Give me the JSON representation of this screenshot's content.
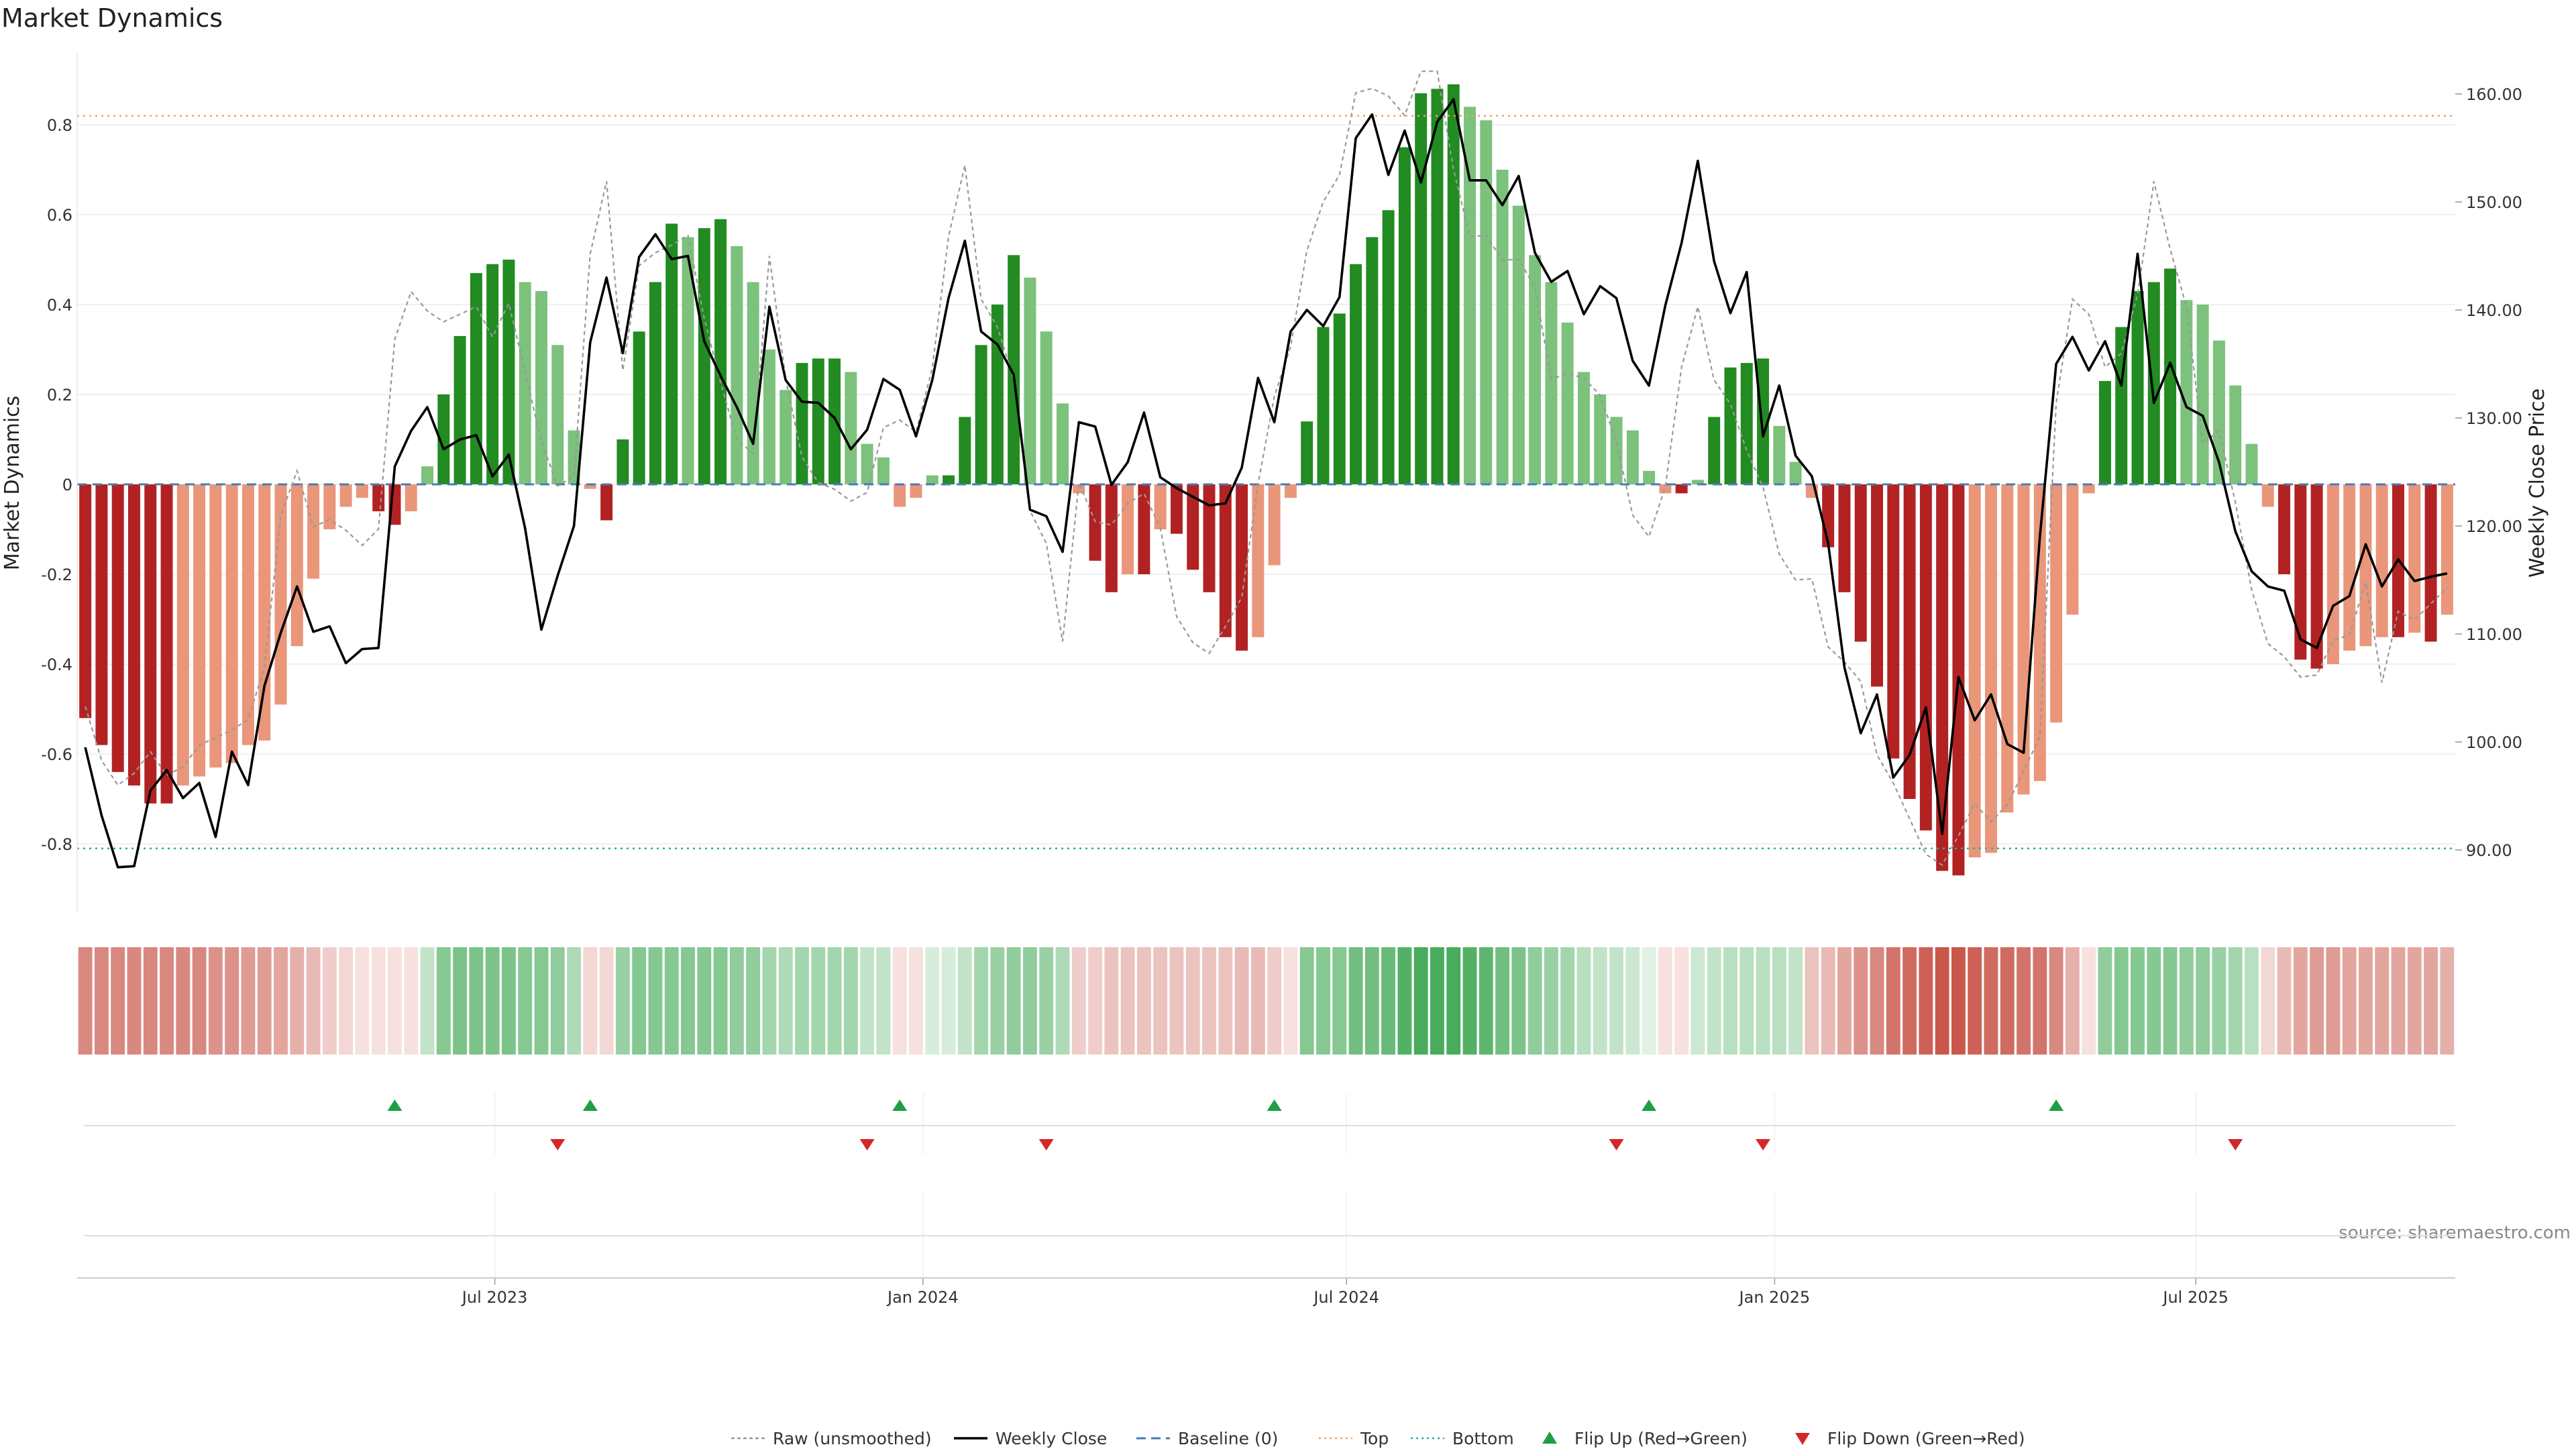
{
  "chart_data": {
    "type": "bar",
    "title": "Market Dynamics",
    "ylabel": "Market Dynamics",
    "y2label": "Weekly Close Price",
    "ylim": [
      -0.96,
      0.96
    ],
    "y2lim": [
      84.0,
      163.6
    ],
    "yticks": [
      "-0.8",
      "-0.6",
      "-0.4",
      "-0.2",
      "0",
      "0.2",
      "0.4",
      "0.6",
      "0.8"
    ],
    "y2ticks": [
      "90.00",
      "100.00",
      "110.00",
      "120.00",
      "130.00",
      "140.00",
      "150.00",
      "160.00"
    ],
    "xticks": [
      {
        "label": "Jul 2023",
        "date": "2023-07-01"
      },
      {
        "label": "Jan 2024",
        "date": "2024-01-01"
      },
      {
        "label": "Jul 2024",
        "date": "2024-07-01"
      },
      {
        "label": "Jan 2025",
        "date": "2025-01-01"
      },
      {
        "label": "Jul 2025",
        "date": "2025-07-01"
      }
    ],
    "start_week": "2023-01-06",
    "top_level": 0.82,
    "bottom_level": -0.81,
    "colors": {
      "strong_green": "#228B22",
      "light_green": "#7CC17C",
      "strong_red": "#B22222",
      "light_red": "#E9967A",
      "raw": "#999999",
      "close": "#000000",
      "baseline": "#4A7BB7",
      "top": "#F4A460",
      "bottom": "#20B2AA",
      "flip_up": "#1E9E45",
      "flip_down": "#D62728"
    },
    "dynamics": [
      -0.52,
      -0.58,
      -0.64,
      -0.67,
      -0.71,
      -0.71,
      -0.67,
      -0.65,
      -0.63,
      -0.62,
      -0.58,
      -0.57,
      -0.49,
      -0.36,
      -0.21,
      -0.1,
      -0.05,
      -0.03,
      -0.06,
      -0.09,
      -0.06,
      0.04,
      0.2,
      0.33,
      0.47,
      0.49,
      0.5,
      0.45,
      0.43,
      0.31,
      0.12,
      -0.01,
      -0.08,
      0.1,
      0.34,
      0.45,
      0.58,
      0.55,
      0.57,
      0.59,
      0.53,
      0.45,
      0.3,
      0.21,
      0.27,
      0.28,
      0.28,
      0.25,
      0.09,
      0.06,
      -0.05,
      -0.03,
      0.02,
      0.02,
      0.15,
      0.31,
      0.4,
      0.51,
      0.46,
      0.34,
      0.18,
      -0.02,
      -0.17,
      -0.24,
      -0.2,
      -0.2,
      -0.1,
      -0.11,
      -0.19,
      -0.24,
      -0.34,
      -0.37,
      -0.34,
      -0.18,
      -0.03,
      0.14,
      0.35,
      0.38,
      0.49,
      0.55,
      0.61,
      0.75,
      0.87,
      0.88,
      0.89,
      0.84,
      0.81,
      0.7,
      0.62,
      0.51,
      0.45,
      0.36,
      0.25,
      0.2,
      0.15,
      0.12,
      0.03,
      -0.02,
      -0.02,
      0.01,
      0.15,
      0.26,
      0.27,
      0.28,
      0.13,
      0.05,
      -0.03,
      -0.14,
      -0.24,
      -0.35,
      -0.45,
      -0.61,
      -0.7,
      -0.77,
      -0.86,
      -0.87,
      -0.83,
      -0.82,
      -0.73,
      -0.69,
      -0.66,
      -0.53,
      -0.29,
      -0.02,
      0.23,
      0.35,
      0.43,
      0.45,
      0.48,
      0.41,
      0.4,
      0.32,
      0.22,
      0.09,
      -0.05,
      -0.2,
      -0.39,
      -0.41,
      -0.4,
      -0.37,
      -0.36,
      -0.34,
      -0.34,
      -0.33,
      -0.35,
      -0.29
    ],
    "close": [
      99.5,
      93.2,
      88.4,
      88.5,
      95.5,
      97.4,
      94.8,
      96.2,
      91.2,
      99.1,
      96.0,
      105.2,
      110.1,
      114.4,
      110.2,
      110.7,
      107.3,
      108.6,
      108.7,
      125.5,
      128.8,
      131.0,
      127.1,
      128.0,
      128.4,
      124.6,
      126.6,
      119.8,
      110.4,
      115.4,
      120.0,
      137.0,
      143.0,
      136.0,
      144.9,
      147.0,
      144.7,
      145.0,
      137.1,
      133.9,
      131.0,
      127.6,
      140.3,
      133.5,
      131.5,
      131.4,
      130.0,
      127.1,
      128.9,
      133.6,
      132.6,
      128.3,
      133.5,
      141.1,
      146.4,
      138.0,
      136.8,
      134.0,
      121.5,
      120.9,
      117.6,
      129.6,
      129.2,
      123.8,
      125.9,
      130.5,
      124.5,
      123.5,
      122.7,
      121.9,
      122.1,
      125.4,
      133.7,
      129.6,
      138.0,
      140.0,
      138.5,
      141.2,
      155.9,
      158.1,
      152.5,
      156.6,
      151.8,
      157.4,
      159.5,
      152.0,
      152.0,
      149.7,
      152.4,
      145.3,
      142.6,
      143.6,
      139.6,
      142.2,
      141.1,
      135.3,
      133.0,
      140.4,
      146.2,
      153.8,
      144.5,
      139.7,
      143.5,
      128.3,
      133.0,
      126.5,
      124.6,
      118.4,
      106.9,
      100.8,
      104.4,
      96.7,
      98.8,
      103.2,
      91.5,
      106.0,
      102.0,
      104.4,
      99.8,
      99.0,
      119.0,
      135.0,
      137.5,
      134.4,
      137.1,
      133.0,
      145.2,
      131.4,
      135.1,
      131.0,
      130.2,
      125.9,
      119.5,
      115.8,
      114.4,
      114.0,
      109.5,
      108.7,
      112.6,
      113.5,
      118.3,
      114.4,
      116.9,
      114.9,
      115.3,
      115.6
    ],
    "raw": [
      103.3,
      98.3,
      96.0,
      97.1,
      99.1,
      96.9,
      97.7,
      99.7,
      100.4,
      101.1,
      102.1,
      106.9,
      121.0,
      125.1,
      119.9,
      120.6,
      119.6,
      118.2,
      119.7,
      137.3,
      141.7,
      139.9,
      138.9,
      139.6,
      140.3,
      137.5,
      140.6,
      134.3,
      127.8,
      123.7,
      124.6,
      145.2,
      151.9,
      134.4,
      144.1,
      145.3,
      146.0,
      146.9,
      139.2,
      133.3,
      128.0,
      126.7,
      145.0,
      133.6,
      126.4,
      124.0,
      123.4,
      122.3,
      123.1,
      129.1,
      129.8,
      128.7,
      134.6,
      146.8,
      153.4,
      141.0,
      138.4,
      133.6,
      121.4,
      118.4,
      109.3,
      124.0,
      120.4,
      120.1,
      122.1,
      123.0,
      119.8,
      111.6,
      109.2,
      108.2,
      110.7,
      113.4,
      123.9,
      132.0,
      136.6,
      145.5,
      150.0,
      152.5,
      160.1,
      160.5,
      159.8,
      158.0,
      162.1,
      162.1,
      153.0,
      146.8,
      146.9,
      144.6,
      144.7,
      142.1,
      133.6,
      134.1,
      133.7,
      132.1,
      127.8,
      121.0,
      119.0,
      123.6,
      134.7,
      140.3,
      133.5,
      131.3,
      127.0,
      123.6,
      117.4,
      115.0,
      115.1,
      108.8,
      107.4,
      105.6,
      98.8,
      96.2,
      92.9,
      89.6,
      88.6,
      91.3,
      94.3,
      92.6,
      94.2,
      97.3,
      100.5,
      131.4,
      141.0,
      139.6,
      134.7,
      136.0,
      141.4,
      151.9,
      145.6,
      140.3,
      127.6,
      128.8,
      122.2,
      114.1,
      109.1,
      107.9,
      106.0,
      106.2,
      109.4,
      109.9,
      114.8,
      105.5,
      112.1,
      111.3,
      112.8,
      114.3
    ],
    "heat_alpha": [
      0.6,
      0.6,
      0.6,
      0.6,
      0.6,
      0.6,
      0.6,
      0.6,
      0.55,
      0.55,
      0.5,
      0.5,
      0.45,
      0.4,
      0.35,
      0.25,
      0.2,
      0.15,
      0.15,
      0.15,
      0.15,
      0.3,
      0.6,
      0.65,
      0.65,
      0.65,
      0.65,
      0.6,
      0.6,
      0.55,
      0.4,
      0.2,
      0.2,
      0.5,
      0.6,
      0.6,
      0.6,
      0.6,
      0.6,
      0.6,
      0.55,
      0.55,
      0.45,
      0.4,
      0.45,
      0.45,
      0.45,
      0.45,
      0.3,
      0.3,
      0.15,
      0.15,
      0.2,
      0.2,
      0.3,
      0.45,
      0.5,
      0.55,
      0.55,
      0.5,
      0.4,
      0.25,
      0.25,
      0.3,
      0.3,
      0.3,
      0.3,
      0.3,
      0.3,
      0.3,
      0.3,
      0.35,
      0.35,
      0.25,
      0.15,
      0.6,
      0.6,
      0.6,
      0.7,
      0.7,
      0.75,
      0.85,
      0.9,
      0.9,
      0.9,
      0.85,
      0.8,
      0.7,
      0.65,
      0.55,
      0.5,
      0.45,
      0.35,
      0.3,
      0.3,
      0.25,
      0.15,
      0.15,
      0.15,
      0.25,
      0.3,
      0.35,
      0.35,
      0.35,
      0.35,
      0.3,
      0.3,
      0.35,
      0.45,
      0.55,
      0.6,
      0.7,
      0.75,
      0.8,
      0.85,
      0.85,
      0.8,
      0.75,
      0.75,
      0.7,
      0.7,
      0.6,
      0.4,
      0.15,
      0.55,
      0.6,
      0.6,
      0.6,
      0.6,
      0.55,
      0.55,
      0.5,
      0.45,
      0.35,
      0.2,
      0.35,
      0.45,
      0.5,
      0.5,
      0.45,
      0.45,
      0.45,
      0.45,
      0.45,
      0.45,
      0.4
    ],
    "flip_up_weeks": [
      19,
      31,
      50,
      73,
      96,
      121
    ],
    "flip_down_weeks": [
      29,
      48,
      59,
      94,
      103,
      132
    ],
    "legend": [
      {
        "label": "Raw (unsmoothed)",
        "kind": "dotted-line"
      },
      {
        "label": "Weekly Close",
        "kind": "solid-line"
      },
      {
        "label": "Baseline (0)",
        "kind": "dashed-line"
      },
      {
        "label": "Top",
        "kind": "dotted-line-top"
      },
      {
        "label": "Bottom",
        "kind": "dotted-line-bottom"
      },
      {
        "label": "Flip Up (Red→Green)",
        "kind": "triangle-up"
      },
      {
        "label": "Flip Down (Green→Red)",
        "kind": "triangle-down"
      }
    ]
  },
  "source": "source: sharemaestro.com"
}
